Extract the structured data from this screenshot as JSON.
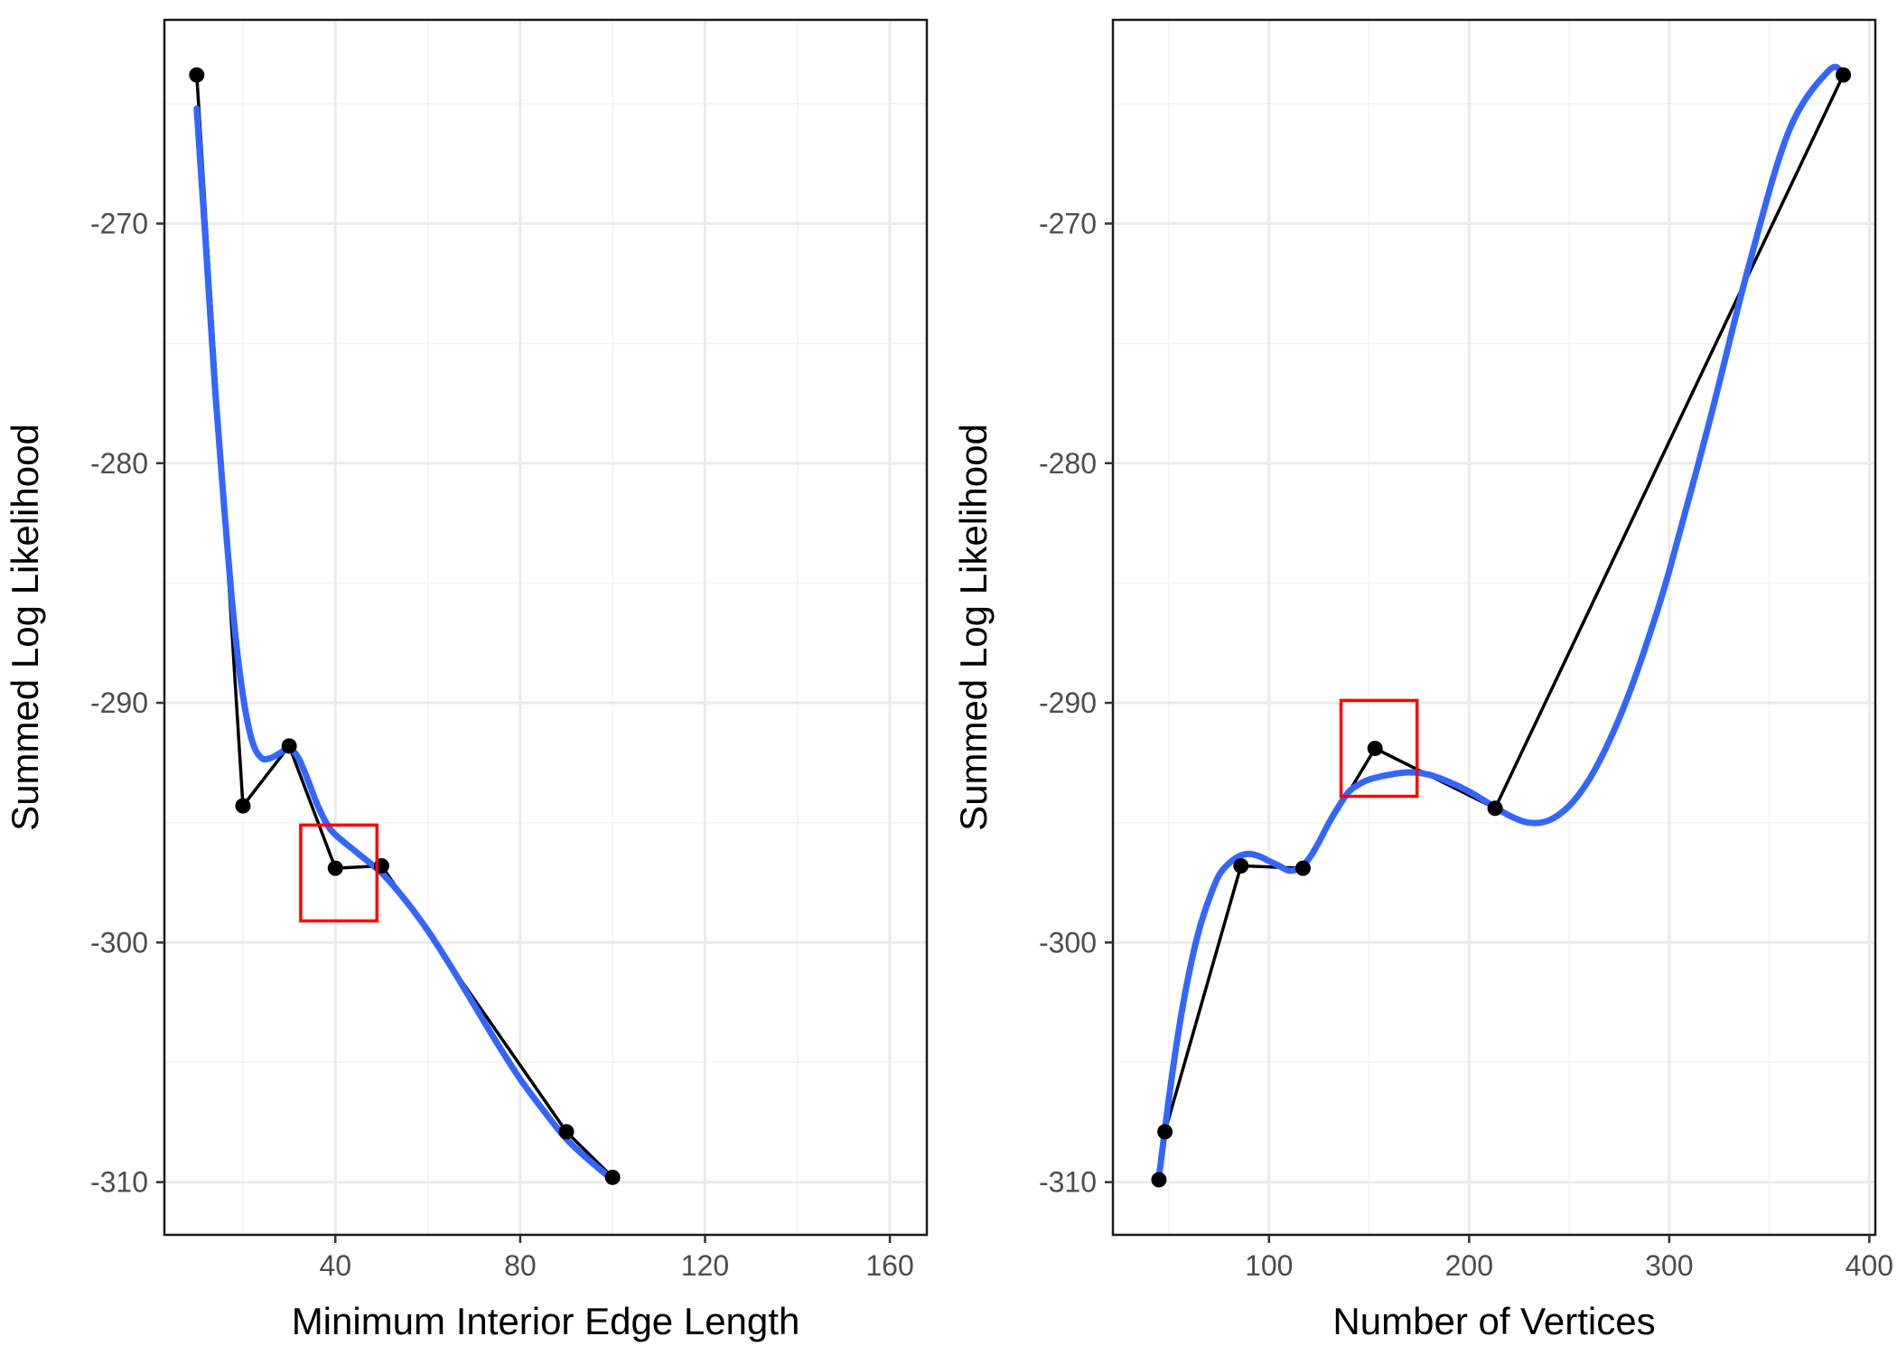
{
  "chart_data": [
    {
      "type": "line",
      "xlabel": "Minimum Interior Edge Length",
      "ylabel": "Summed Log Likelihood",
      "xlim": [
        3,
        168
      ],
      "ylim": [
        -312.2,
        -261.5
      ],
      "xticks": [
        40,
        80,
        120,
        160
      ],
      "xtick_labels": [
        "40",
        "80",
        "120",
        "160"
      ],
      "yticks": [
        -310,
        -300,
        -290,
        -280,
        -270
      ],
      "ytick_labels": [
        "-310",
        "-300",
        "-290",
        "-280",
        "-270"
      ],
      "grid": true,
      "legend": "none",
      "series": [
        {
          "points": [
            [
              10,
              -263.8
            ],
            [
              20,
              -294.3
            ],
            [
              30,
              -291.8
            ],
            [
              40,
              -296.9
            ],
            [
              50,
              -296.8
            ],
            [
              90,
              -307.9
            ],
            [
              100,
              -309.8
            ]
          ]
        }
      ],
      "smooth": {
        "color": "#3366ff",
        "points": [
          [
            10,
            -265.2
          ],
          [
            12,
            -271
          ],
          [
            14,
            -277
          ],
          [
            16,
            -282
          ],
          [
            18,
            -286.5
          ],
          [
            20,
            -289.7
          ],
          [
            22,
            -291.6
          ],
          [
            24,
            -292.3
          ],
          [
            26,
            -292.3
          ],
          [
            28,
            -292.1
          ],
          [
            30,
            -291.9
          ],
          [
            32,
            -292.3
          ],
          [
            34,
            -293.2
          ],
          [
            36,
            -294.2
          ],
          [
            38,
            -295
          ],
          [
            40,
            -295.5
          ],
          [
            45,
            -296.3
          ],
          [
            50,
            -297.1
          ],
          [
            55,
            -298.2
          ],
          [
            60,
            -299.5
          ],
          [
            65,
            -301
          ],
          [
            70,
            -302.6
          ],
          [
            75,
            -304.2
          ],
          [
            80,
            -305.7
          ],
          [
            85,
            -307
          ],
          [
            90,
            -308.2
          ],
          [
            95,
            -309.1
          ],
          [
            100,
            -309.9
          ]
        ]
      },
      "highlight": {
        "color": "#ff0000",
        "x": [
          32.5,
          49
        ],
        "y": [
          -299.1,
          -295.1
        ]
      }
    },
    {
      "type": "line",
      "xlabel": "Number of Vertices",
      "ylabel": "Summed Log Likelihood",
      "xlim": [
        22,
        403
      ],
      "ylim": [
        -312.2,
        -261.5
      ],
      "xticks": [
        100,
        200,
        300,
        400
      ],
      "xtick_labels": [
        "100",
        "200",
        "300",
        "400"
      ],
      "yticks": [
        -310,
        -300,
        -290,
        -280,
        -270
      ],
      "ytick_labels": [
        "-310",
        "-300",
        "-290",
        "-280",
        "-270"
      ],
      "grid": true,
      "legend": "none",
      "series": [
        {
          "points": [
            [
              45,
              -309.9
            ],
            [
              48,
              -307.9
            ],
            [
              86,
              -296.8
            ],
            [
              117,
              -296.9
            ],
            [
              153,
              -291.9
            ],
            [
              213,
              -294.4
            ],
            [
              387,
              -263.8
            ]
          ]
        }
      ],
      "smooth": {
        "color": "#3366ff",
        "points": [
          [
            45,
            -309.8
          ],
          [
            50,
            -306.5
          ],
          [
            55,
            -303.6
          ],
          [
            60,
            -301.3
          ],
          [
            65,
            -299.5
          ],
          [
            70,
            -298.2
          ],
          [
            75,
            -297.2
          ],
          [
            80,
            -296.7
          ],
          [
            85,
            -296.4
          ],
          [
            90,
            -296.3
          ],
          [
            95,
            -296.4
          ],
          [
            100,
            -296.6
          ],
          [
            105,
            -296.8
          ],
          [
            110,
            -297
          ],
          [
            115,
            -296.9
          ],
          [
            120,
            -296.5
          ],
          [
            125,
            -295.8
          ],
          [
            130,
            -295
          ],
          [
            135,
            -294.3
          ],
          [
            140,
            -293.7
          ],
          [
            145,
            -293.4
          ],
          [
            150,
            -293.2
          ],
          [
            160,
            -293
          ],
          [
            170,
            -292.9
          ],
          [
            180,
            -293
          ],
          [
            190,
            -293.3
          ],
          [
            200,
            -293.7
          ],
          [
            210,
            -294.2
          ],
          [
            220,
            -294.7
          ],
          [
            230,
            -295
          ],
          [
            240,
            -294.9
          ],
          [
            250,
            -294.3
          ],
          [
            260,
            -293.2
          ],
          [
            270,
            -291.6
          ],
          [
            280,
            -289.6
          ],
          [
            290,
            -287.2
          ],
          [
            300,
            -284.5
          ],
          [
            320,
            -278.3
          ],
          [
            340,
            -271.7
          ],
          [
            360,
            -266.1
          ],
          [
            380,
            -263.6
          ],
          [
            387,
            -263.8
          ]
        ]
      },
      "highlight": {
        "color": "#ff0000",
        "x": [
          136,
          174
        ],
        "y": [
          -293.9,
          -289.9
        ]
      }
    }
  ]
}
